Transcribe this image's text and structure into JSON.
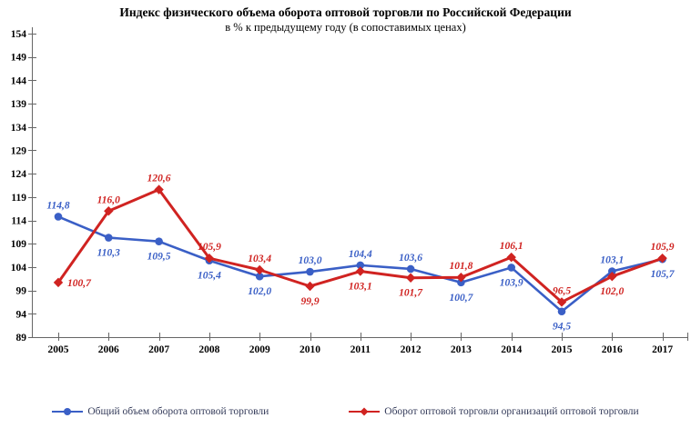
{
  "colors": {
    "blue": "#3a5fc6",
    "red": "#d02321",
    "axis": "#666666",
    "legend_text": "#333a59"
  },
  "chart_data": {
    "type": "line",
    "title": "Индекс физического объема оборота оптовой торговли по Российской Федерации",
    "subtitle": "в % к предыдущему году (в сопоставимых ценах)",
    "categories": [
      "2005",
      "2006",
      "2007",
      "2008",
      "2009",
      "2010",
      "2011",
      "2012",
      "2013",
      "2014",
      "2015",
      "2016",
      "2017"
    ],
    "series": [
      {
        "name": "Общий объем оборота оптовой торговли",
        "marker": "circle",
        "color_key": "blue",
        "stroke_width": 2.6,
        "values": [
          114.8,
          110.3,
          109.5,
          105.4,
          102.0,
          103.0,
          104.4,
          103.6,
          100.7,
          103.9,
          94.5,
          103.1,
          105.7
        ],
        "label_side": [
          "above",
          "below",
          "below",
          "below",
          "below",
          "above",
          "above",
          "above",
          "below",
          "below",
          "below",
          "above",
          "below"
        ]
      },
      {
        "name": "Оборот оптовой торговли организаций оптовой торговли",
        "marker": "diamond",
        "color_key": "red",
        "stroke_width": 3,
        "values": [
          100.7,
          116.0,
          120.6,
          105.9,
          103.4,
          99.9,
          103.1,
          101.7,
          101.8,
          106.1,
          96.5,
          102.0,
          105.9
        ],
        "label_side": [
          "right",
          "above",
          "above",
          "above",
          "above",
          "below",
          "below",
          "below",
          "above",
          "above",
          "above",
          "below",
          "above"
        ]
      }
    ],
    "ylim": [
      89,
      154
    ],
    "ytick_step": 5,
    "decimal_separator": ",",
    "grid": false,
    "legend_position": "bottom"
  }
}
